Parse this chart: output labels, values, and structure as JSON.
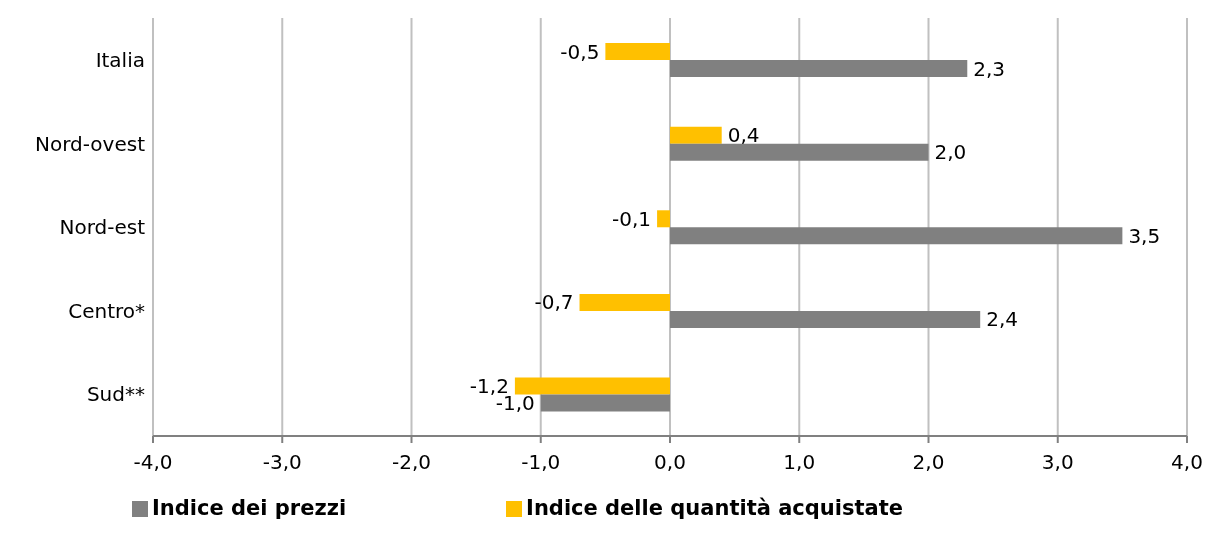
{
  "chart_data": {
    "type": "bar",
    "orientation": "horizontal",
    "categories": [
      "Italia",
      "Nord-ovest",
      "Nord-est",
      "Centro*",
      "Sud**"
    ],
    "series": [
      {
        "name": "Indice delle quantità  acquistate",
        "color": "#ffc000",
        "values": [
          -0.5,
          0.4,
          -0.1,
          -0.7,
          -1.2
        ],
        "value_labels": [
          "-0,5",
          "0,4",
          "-0,1",
          "-0,7",
          "-1,2"
        ]
      },
      {
        "name": "Indice dei prezzi",
        "color": "#808080",
        "values": [
          2.3,
          2.0,
          3.5,
          2.4,
          -1.0
        ],
        "value_labels": [
          "2,3",
          "2,0",
          "3,5",
          "2,4",
          "-1,0"
        ]
      }
    ],
    "xlim": [
      -4,
      4
    ],
    "xticks": [
      {
        "value": -4,
        "label": "-4,0"
      },
      {
        "value": -3,
        "label": "-3,0"
      },
      {
        "value": -2,
        "label": "-2,0"
      },
      {
        "value": -1,
        "label": "-1,0"
      },
      {
        "value": 0,
        "label": "0,0"
      },
      {
        "value": 1,
        "label": "1,0"
      },
      {
        "value": 2,
        "label": "2,0"
      },
      {
        "value": 3,
        "label": "3,0"
      },
      {
        "value": 4,
        "label": "4,0"
      }
    ],
    "grid": "x",
    "legend": "bottom"
  }
}
